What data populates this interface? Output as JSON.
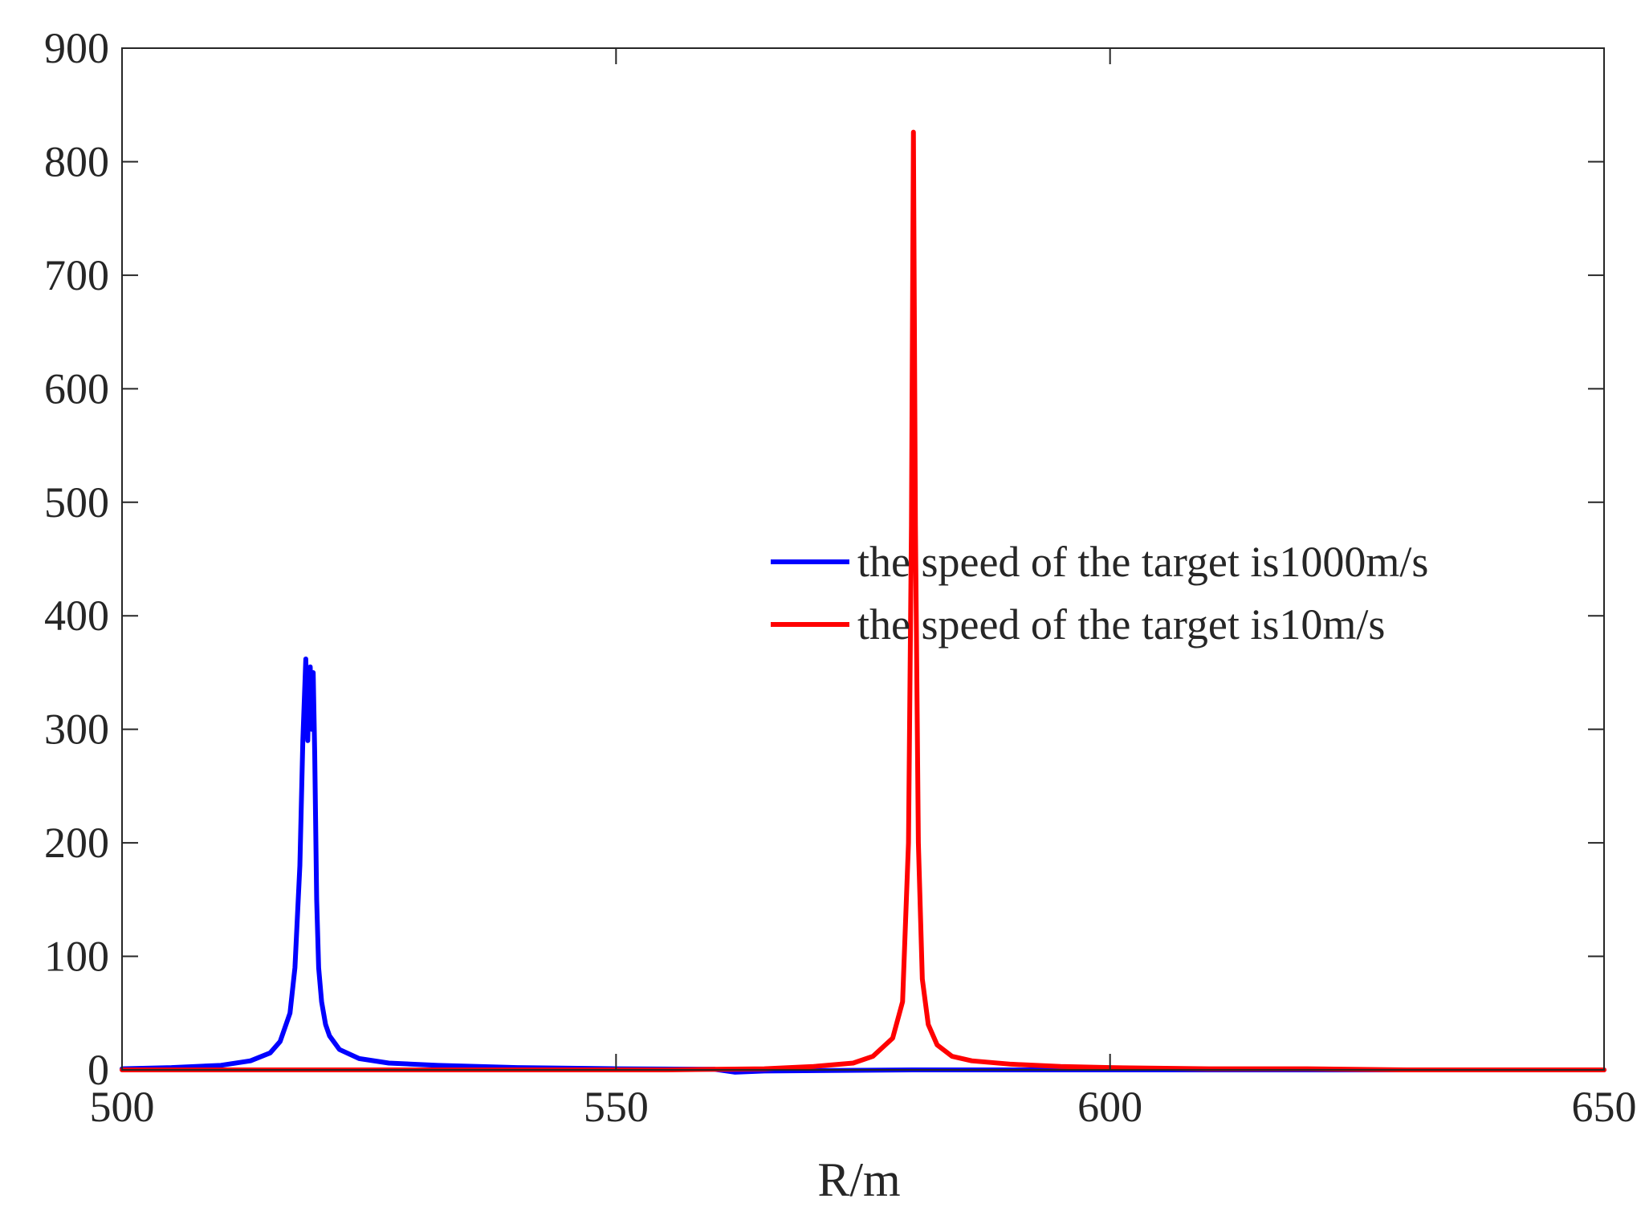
{
  "chart_data": {
    "type": "line",
    "title": "",
    "xlabel": "R/m",
    "ylabel": "",
    "xlim": [
      500,
      650
    ],
    "ylim": [
      0,
      900
    ],
    "x_ticks": [
      500,
      550,
      600,
      650
    ],
    "y_ticks": [
      0,
      100,
      200,
      300,
      400,
      500,
      600,
      700,
      800,
      900
    ],
    "grid": false,
    "box": true,
    "legend": {
      "position": "right-middle"
    },
    "series": [
      {
        "name": "the speed of the target is1000m/s",
        "color": "#0000ff",
        "x": [
          500,
          505,
          510,
          513,
          515,
          516,
          517,
          517.5,
          518,
          518.3,
          518.6,
          518.8,
          518.9,
          519.05,
          519.2,
          519.35,
          519.5,
          519.7,
          519.9,
          520.2,
          520.6,
          521,
          522,
          524,
          527,
          532,
          540,
          550,
          560,
          562,
          565,
          580,
          600,
          620,
          640,
          650
        ],
        "y": [
          1,
          2,
          4,
          8,
          15,
          25,
          50,
          90,
          180,
          290,
          362,
          290,
          330,
          355,
          300,
          350,
          280,
          150,
          90,
          60,
          40,
          30,
          18,
          10,
          6,
          4,
          2,
          1,
          0.5,
          -2,
          -1,
          0,
          0,
          0,
          0,
          0
        ]
      },
      {
        "name": "the speed of the target is10m/s",
        "color": "#ff0000",
        "x": [
          500,
          520,
          540,
          555,
          565,
          570,
          574,
          576,
          578,
          579,
          579.6,
          579.9,
          580.1,
          580.3,
          580.6,
          581,
          581.6,
          582.5,
          584,
          586,
          590,
          595,
          600,
          610,
          620,
          630,
          640,
          650
        ],
        "y": [
          0,
          0,
          0,
          0,
          1,
          3,
          6,
          12,
          28,
          60,
          200,
          480,
          826,
          480,
          200,
          80,
          40,
          22,
          12,
          8,
          5,
          3,
          2,
          1,
          1,
          0,
          0,
          0
        ]
      }
    ]
  }
}
